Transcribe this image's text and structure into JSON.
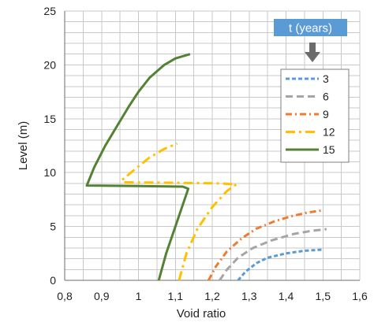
{
  "chart_data": {
    "type": "line",
    "xlabel": "Void ratio",
    "ylabel": "Level (m)",
    "xlim": [
      0.8,
      1.6
    ],
    "ylim": [
      0,
      25
    ],
    "x_ticks": [
      "0,8",
      "0,9",
      "1",
      "1,1",
      "1,2",
      "1,3",
      "1,4",
      "1,5",
      "1,6"
    ],
    "y_ticks": [
      "0",
      "5",
      "10",
      "15",
      "20",
      "25"
    ],
    "grid": true,
    "minor_x_grid_step": 0.05,
    "legend": {
      "title": "t (years)",
      "title_color": "#5b9bd5",
      "arrow_icon": "down-arrow-icon",
      "placement": "right"
    },
    "series": [
      {
        "name": "3",
        "color": "#5b9bd5",
        "style": "dash",
        "points": [
          [
            1.27,
            0
          ],
          [
            1.29,
            0.8
          ],
          [
            1.32,
            1.6
          ],
          [
            1.35,
            2.1
          ],
          [
            1.4,
            2.5
          ],
          [
            1.45,
            2.75
          ],
          [
            1.5,
            2.85
          ]
        ]
      },
      {
        "name": "6",
        "color": "#a5a5a5",
        "style": "longdash",
        "points": [
          [
            1.22,
            0
          ],
          [
            1.24,
            1.0
          ],
          [
            1.27,
            2.1
          ],
          [
            1.31,
            3.0
          ],
          [
            1.36,
            3.7
          ],
          [
            1.42,
            4.3
          ],
          [
            1.47,
            4.6
          ],
          [
            1.51,
            4.75
          ]
        ]
      },
      {
        "name": "9",
        "color": "#ed7d31",
        "style": "dashdot",
        "points": [
          [
            1.19,
            0
          ],
          [
            1.21,
            1.3
          ],
          [
            1.24,
            2.7
          ],
          [
            1.28,
            3.9
          ],
          [
            1.32,
            4.8
          ],
          [
            1.37,
            5.5
          ],
          [
            1.42,
            6.0
          ],
          [
            1.46,
            6.3
          ],
          [
            1.5,
            6.5
          ]
        ]
      },
      {
        "name": "12",
        "color": "#ffc000",
        "style": "longdashdot",
        "points": [
          [
            1.11,
            0
          ],
          [
            1.13,
            2.5
          ],
          [
            1.16,
            4.8
          ],
          [
            1.2,
            6.8
          ],
          [
            1.24,
            8.3
          ],
          [
            1.265,
            8.9
          ],
          [
            1.22,
            9.0
          ],
          [
            1.1,
            9.05
          ],
          [
            0.96,
            9.1
          ],
          [
            0.955,
            9.3
          ],
          [
            0.99,
            10.3
          ],
          [
            1.03,
            11.4
          ],
          [
            1.07,
            12.2
          ],
          [
            1.105,
            12.7
          ]
        ]
      },
      {
        "name": "15",
        "color": "#548235",
        "style": "solid",
        "points": [
          [
            1.055,
            0
          ],
          [
            1.075,
            2.5
          ],
          [
            1.1,
            5.0
          ],
          [
            1.12,
            7.0
          ],
          [
            1.135,
            8.5
          ],
          [
            1.12,
            8.7
          ],
          [
            1.0,
            8.75
          ],
          [
            0.86,
            8.8
          ],
          [
            0.88,
            10.5
          ],
          [
            0.91,
            12.5
          ],
          [
            0.945,
            14.5
          ],
          [
            0.975,
            16.2
          ],
          [
            1.0,
            17.5
          ],
          [
            1.03,
            18.8
          ],
          [
            1.07,
            20.0
          ],
          [
            1.1,
            20.6
          ],
          [
            1.14,
            21.0
          ]
        ]
      }
    ]
  }
}
